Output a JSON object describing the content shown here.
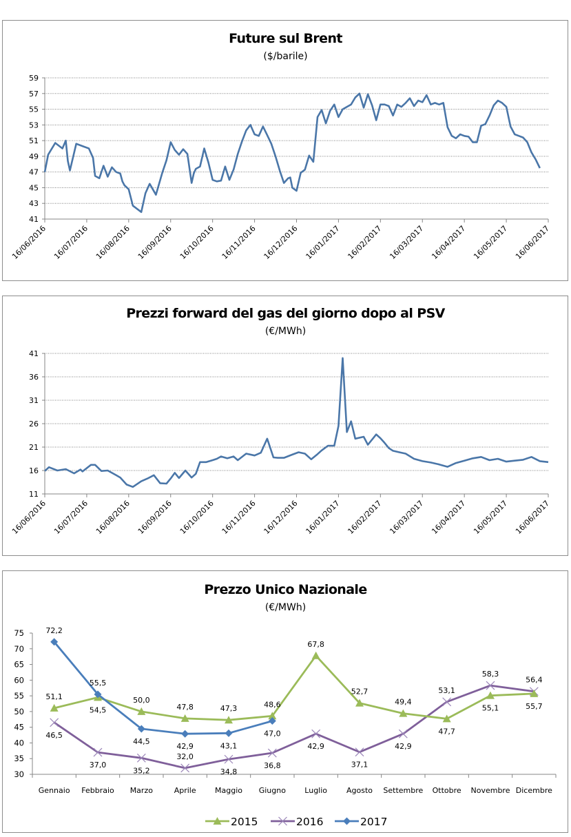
{
  "chart_data": [
    {
      "type": "line",
      "title": "Future sul Brent",
      "subtitle": "($/barile)",
      "xlabel": "",
      "ylabel": "",
      "ylim": [
        41,
        59
      ],
      "yticks": [
        "41",
        "43",
        "45",
        "47",
        "49",
        "51",
        "53",
        "55",
        "57",
        "59"
      ],
      "xticks": [
        "16/06/2016",
        "16/07/2016",
        "16/08/2016",
        "16/09/2016",
        "16/10/2016",
        "16/11/2016",
        "16/12/2016",
        "16/01/2017",
        "16/02/2017",
        "16/03/2017",
        "16/04/2017",
        "16/05/2017",
        "16/06/2017"
      ],
      "grid": "horizontal-dotted",
      "legend": "none",
      "series": [
        {
          "name": "Brent",
          "color": "#4a76a8",
          "x_month_index": [
            0,
            0.08,
            0.25,
            0.42,
            0.5,
            0.55,
            0.6,
            0.75,
            0.9,
            1.05,
            1.15,
            1.2,
            1.3,
            1.4,
            1.5,
            1.55,
            1.6,
            1.7,
            1.8,
            1.85,
            1.9,
            2.0,
            2.1,
            2.2,
            2.3,
            2.4,
            2.5,
            2.65,
            2.8,
            2.9,
            3.0,
            3.1,
            3.2,
            3.3,
            3.4,
            3.5,
            3.55,
            3.6,
            3.7,
            3.8,
            3.9,
            4.0,
            4.1,
            4.2,
            4.3,
            4.4,
            4.5,
            4.6,
            4.7,
            4.8,
            4.9,
            5.0,
            5.1,
            5.2,
            5.3,
            5.4,
            5.5,
            5.6,
            5.7,
            5.8,
            5.85,
            5.9,
            6.0,
            6.1,
            6.2,
            6.3,
            6.4,
            6.5,
            6.6,
            6.7,
            6.8,
            6.9,
            7.0,
            7.1,
            7.2,
            7.3,
            7.4,
            7.5,
            7.6,
            7.7,
            7.8,
            7.9,
            8.0,
            8.1,
            8.2,
            8.3,
            8.4,
            8.5,
            8.6,
            8.7,
            8.8,
            8.9,
            9.0,
            9.1,
            9.2,
            9.3,
            9.4,
            9.5,
            9.6,
            9.7,
            9.8,
            9.9,
            10.0,
            10.1,
            10.2,
            10.3,
            10.4,
            10.5,
            10.6,
            10.7,
            10.8,
            10.9,
            11.0,
            11.1,
            11.2,
            11.3,
            11.4,
            11.5,
            11.6,
            11.7,
            11.8,
            11.9,
            12.0
          ],
          "values": [
            47.0,
            49.2,
            50.7,
            50.0,
            51.0,
            48.4,
            47.2,
            50.6,
            50.3,
            50.0,
            48.8,
            46.5,
            46.2,
            47.8,
            46.4,
            47.0,
            47.6,
            47.0,
            46.8,
            45.8,
            45.3,
            44.8,
            42.7,
            42.3,
            41.9,
            44.3,
            45.5,
            44.1,
            46.9,
            48.5,
            50.8,
            49.8,
            49.2,
            49.9,
            49.3,
            45.6,
            46.8,
            47.4,
            47.7,
            50.0,
            48.2,
            46.0,
            45.8,
            45.9,
            47.7,
            46.0,
            47.3,
            49.3,
            50.9,
            52.3,
            53.0,
            51.8,
            51.6,
            52.8,
            51.7,
            50.6,
            49.0,
            47.2,
            45.6,
            46.2,
            46.3,
            45.0,
            44.6,
            46.9,
            47.3,
            49.1,
            48.3,
            54.0,
            54.9,
            53.2,
            54.8,
            55.6,
            54.0,
            55.0,
            55.3,
            55.6,
            56.5,
            57.0,
            55.2,
            56.9,
            55.5,
            53.6,
            55.6,
            55.6,
            55.4,
            54.2,
            55.6,
            55.3,
            55.8,
            56.4,
            55.4,
            56.1,
            55.9,
            56.8,
            55.6,
            55.8,
            55.6,
            55.8,
            52.7,
            51.6,
            51.3,
            51.8,
            51.6,
            51.5,
            50.8,
            50.8,
            52.9,
            53.1,
            54.2,
            55.5,
            56.1,
            55.8,
            55.3,
            52.8,
            51.8,
            51.6,
            51.4,
            50.8,
            49.5,
            48.6,
            47.5
          ],
          "note": "approximate daily trace; key turning points read off gridlines"
        }
      ]
    },
    {
      "type": "line",
      "title": "Prezzi forward del gas del giorno dopo al PSV",
      "subtitle": "(€/MWh)",
      "xlabel": "",
      "ylabel": "",
      "ylim": [
        11,
        41
      ],
      "yticks": [
        "11",
        "16",
        "21",
        "26",
        "31",
        "36",
        "41"
      ],
      "xticks": [
        "16/06/2016",
        "16/07/2016",
        "16/08/2016",
        "16/09/2016",
        "16/10/2016",
        "16/11/2016",
        "16/12/2016",
        "16/01/2017",
        "16/02/2017",
        "16/03/2017",
        "16/04/2017",
        "16/05/2017",
        "16/06/2017"
      ],
      "grid": "horizontal-dotted",
      "legend": "none",
      "series": [
        {
          "name": "PSV",
          "color": "#4a76a8",
          "x_month_index": [
            0,
            0.1,
            0.3,
            0.5,
            0.7,
            0.85,
            0.9,
            1.1,
            1.2,
            1.35,
            1.5,
            1.7,
            1.8,
            1.95,
            2.1,
            2.3,
            2.45,
            2.6,
            2.75,
            2.9,
            3.0,
            3.1,
            3.2,
            3.35,
            3.5,
            3.6,
            3.7,
            3.85,
            4.0,
            4.1,
            4.2,
            4.35,
            4.5,
            4.6,
            4.8,
            5.0,
            5.15,
            5.3,
            5.45,
            5.55,
            5.7,
            5.9,
            6.05,
            6.2,
            6.35,
            6.5,
            6.6,
            6.75,
            6.9,
            7.0,
            7.1,
            7.2,
            7.3,
            7.4,
            7.6,
            7.7,
            7.8,
            7.9,
            8.0,
            8.1,
            8.2,
            8.3,
            8.45,
            8.6,
            8.8,
            9.0,
            9.2,
            9.4,
            9.6,
            9.8,
            10.0,
            10.2,
            10.4,
            10.6,
            10.8,
            11.0,
            11.2,
            11.4,
            11.6,
            11.8,
            12.0
          ],
          "values": [
            15.9,
            16.7,
            16.0,
            16.3,
            15.4,
            16.2,
            15.8,
            17.2,
            17.2,
            15.9,
            16.0,
            15.0,
            14.5,
            13.0,
            12.5,
            13.7,
            14.3,
            15.0,
            13.3,
            13.2,
            14.3,
            15.5,
            14.4,
            16.0,
            14.5,
            15.3,
            17.8,
            17.8,
            18.2,
            18.5,
            19.0,
            18.6,
            19.0,
            18.2,
            19.6,
            19.2,
            19.8,
            22.8,
            18.8,
            18.7,
            18.7,
            19.4,
            19.9,
            19.6,
            18.4,
            19.5,
            20.3,
            21.3,
            21.3,
            25.5,
            40.0,
            24.2,
            26.5,
            22.8,
            23.2,
            21.5,
            22.6,
            23.7,
            22.9,
            21.9,
            20.8,
            20.2,
            19.9,
            19.6,
            18.5,
            18.0,
            17.7,
            17.3,
            16.8,
            17.6,
            18.1,
            18.6,
            18.9,
            18.2,
            18.5,
            17.9,
            18.1,
            18.3,
            18.9,
            18.0,
            17.8
          ],
          "note": "approximate daily trace; spike to ~40 in early January 2017"
        }
      ]
    },
    {
      "type": "line",
      "title": "Prezzo Unico Nazionale",
      "subtitle": "(€/MWh)",
      "xlabel": "",
      "ylabel": "",
      "ylim": [
        30,
        75
      ],
      "yticks": [
        "30",
        "35",
        "40",
        "45",
        "50",
        "55",
        "60",
        "65",
        "70",
        "75"
      ],
      "categories": [
        "Gennaio",
        "Febbraio",
        "Marzo",
        "Aprile",
        "Maggio",
        "Giugno",
        "Luglio",
        "Agosto",
        "Settembre",
        "Ottobre",
        "Novembre",
        "Dicembre"
      ],
      "grid": "none",
      "legend": "bottom-center",
      "series": [
        {
          "name": "2015",
          "color": "#9bbb59",
          "marker": "triangle",
          "values": [
            51.1,
            54.5,
            50.0,
            47.8,
            47.3,
            48.6,
            67.8,
            52.7,
            49.4,
            47.7,
            55.1,
            55.7
          ],
          "labels": [
            "51,1",
            "54,5",
            "50,0",
            "47,8",
            "47,3",
            "48,6",
            "67,8",
            "52,7",
            "49,4",
            "47,7",
            "55,1",
            "55,7"
          ]
        },
        {
          "name": "2016",
          "color": "#7f5f9a",
          "marker": "x",
          "values": [
            46.5,
            37.0,
            35.2,
            32.0,
            34.8,
            36.8,
            42.9,
            37.1,
            42.9,
            53.1,
            58.3,
            56.4
          ],
          "labels": [
            "46,5",
            "37,0",
            "35,2",
            "32,0",
            "34,8",
            "36,8",
            "42,9",
            "37,1",
            "42,9",
            "53,1",
            "58,3",
            "56,4"
          ]
        },
        {
          "name": "2017",
          "color": "#4a7ebb",
          "marker": "diamond",
          "values": [
            72.2,
            55.5,
            44.5,
            42.9,
            43.1,
            47.0
          ],
          "labels": [
            "72,2",
            "55,5",
            "44,5",
            "42,9",
            "43,1",
            "47,0"
          ]
        }
      ]
    }
  ]
}
